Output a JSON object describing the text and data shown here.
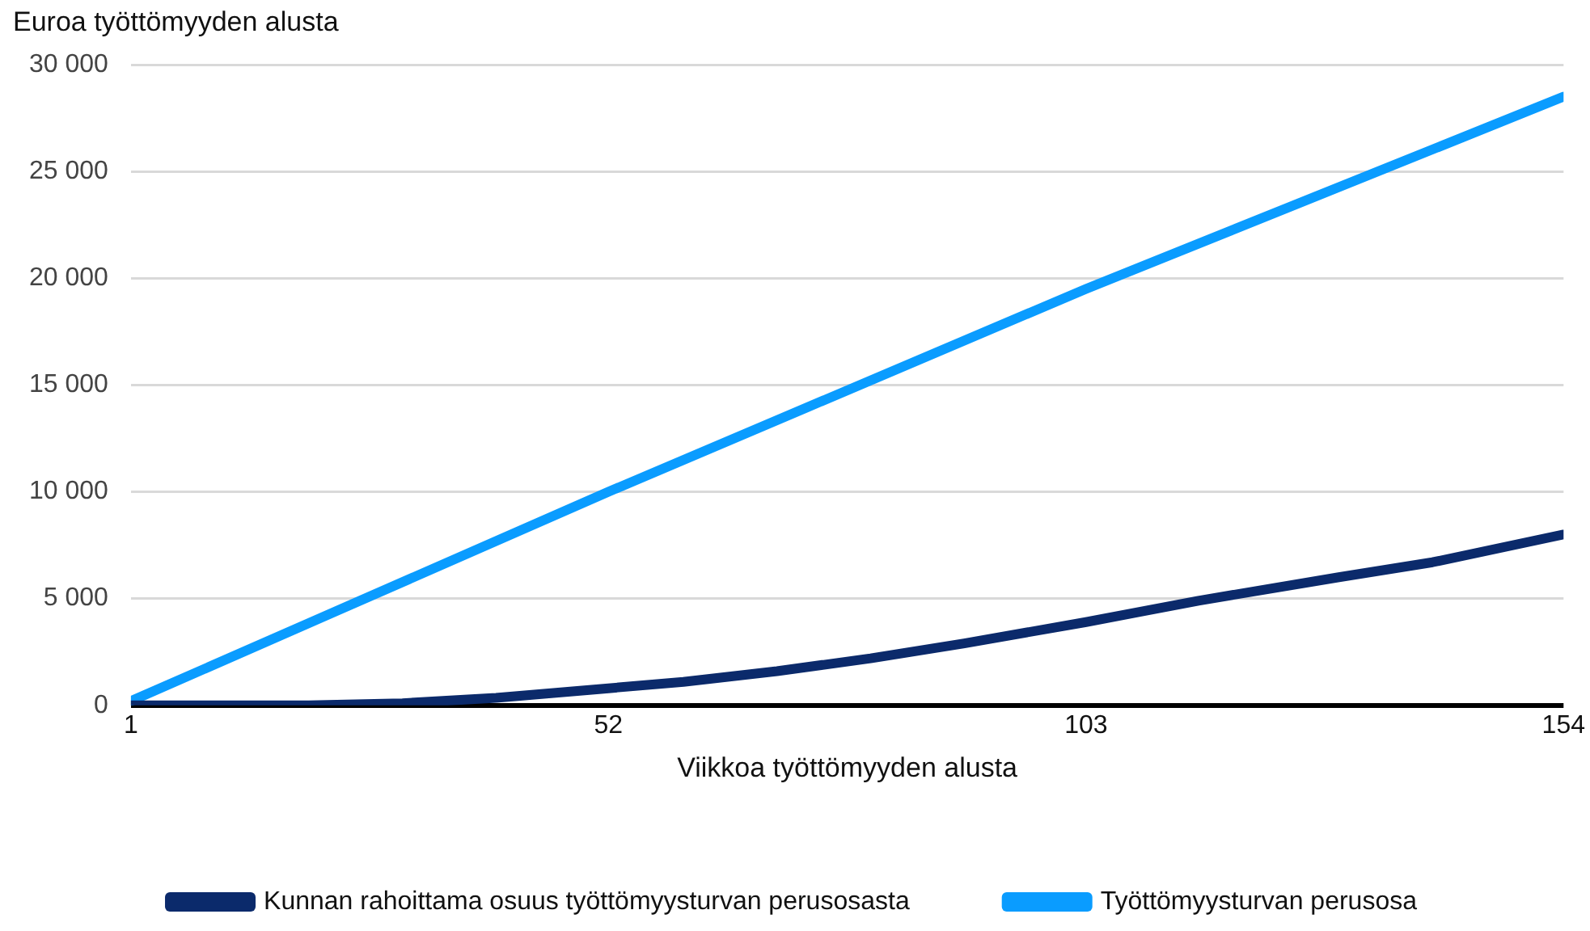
{
  "chart_data": {
    "type": "line",
    "ylabel": "Euroa työttömyyden alusta",
    "xlabel": "Viikkoa työttömyyden alusta",
    "xlim": [
      1,
      154
    ],
    "xticks": [
      1,
      52,
      103,
      154
    ],
    "ylim": [
      0,
      30000
    ],
    "yticks": [
      0,
      {
        "value": 5000,
        "label": "5 000"
      },
      {
        "value": 10000,
        "label": "10 000"
      },
      {
        "value": 15000,
        "label": "15 000"
      },
      {
        "value": 20000,
        "label": "20 000"
      },
      {
        "value": 25000,
        "label": "25 000"
      },
      {
        "value": 30000,
        "label": "30 000"
      }
    ],
    "grid": "y",
    "legend": "bottom",
    "marker": "none",
    "line_style": "solid",
    "series": [
      {
        "name": "Kunnan rahoittama osuus työttömyysturvan perusosasta",
        "color": "#0b2a6b",
        "x": [
          1,
          20,
          30,
          40,
          52,
          60,
          70,
          80,
          90,
          103,
          115,
          130,
          140,
          154
        ],
        "values": [
          0,
          0,
          100,
          350,
          800,
          1100,
          1600,
          2200,
          2900,
          3900,
          4900,
          6000,
          6700,
          8000
        ]
      },
      {
        "name": "Työttömyysturvan perusosa",
        "color": "#0a9cff",
        "x": [
          1,
          52,
          103,
          154
        ],
        "values": [
          200,
          10000,
          19500,
          28500
        ]
      }
    ]
  }
}
